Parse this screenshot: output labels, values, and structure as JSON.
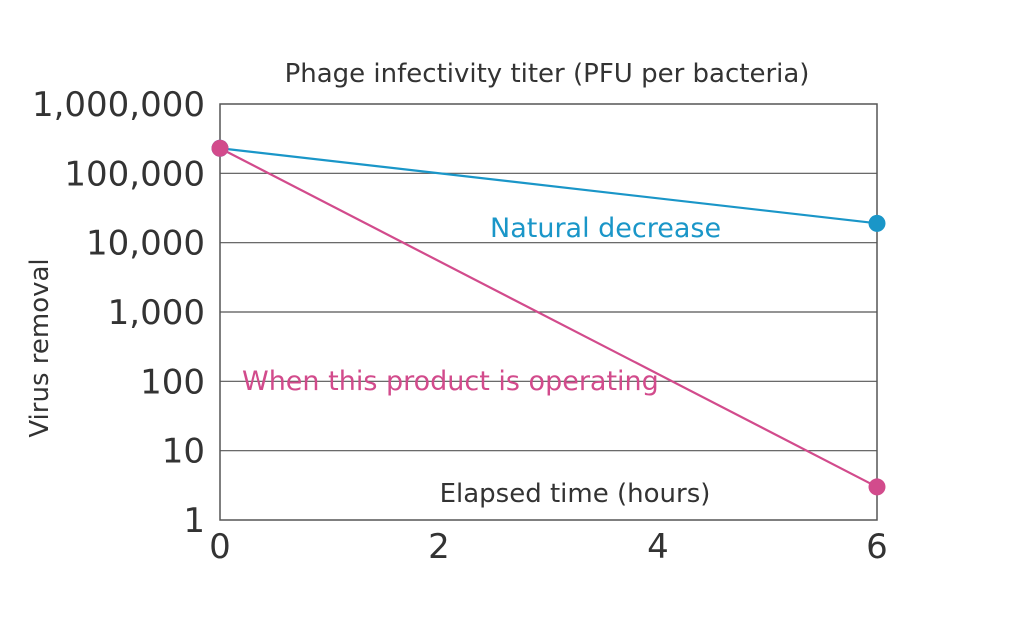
{
  "chart_data": {
    "type": "line",
    "title": "Phage infectivity titer (PFU per bacteria)",
    "xlabel": "Elapsed time (hours)",
    "ylabel": "Virus removal",
    "yscale": "log",
    "ylim": [
      1,
      1000000
    ],
    "xlim": [
      0,
      6
    ],
    "y_ticks": [
      {
        "value": 1,
        "label": "1"
      },
      {
        "value": 10,
        "label": "10"
      },
      {
        "value": 100,
        "label": "100"
      },
      {
        "value": 1000,
        "label": "1,000"
      },
      {
        "value": 10000,
        "label": "10,000"
      },
      {
        "value": 100000,
        "label": "100,000"
      },
      {
        "value": 1000000,
        "label": "1,000,000"
      }
    ],
    "x_ticks": [
      {
        "value": 0,
        "label": "0"
      },
      {
        "value": 2,
        "label": "2"
      },
      {
        "value": 4,
        "label": "4"
      },
      {
        "value": 6,
        "label": "6"
      }
    ],
    "grid": true,
    "series": [
      {
        "name": "Natural decrease",
        "color": "#1a96c8",
        "x": [
          0,
          6
        ],
        "y": [
          230000,
          19000
        ]
      },
      {
        "name": "When this product is operating",
        "color": "#d24b8c",
        "x": [
          0,
          6
        ],
        "y": [
          230000,
          3
        ]
      }
    ]
  }
}
